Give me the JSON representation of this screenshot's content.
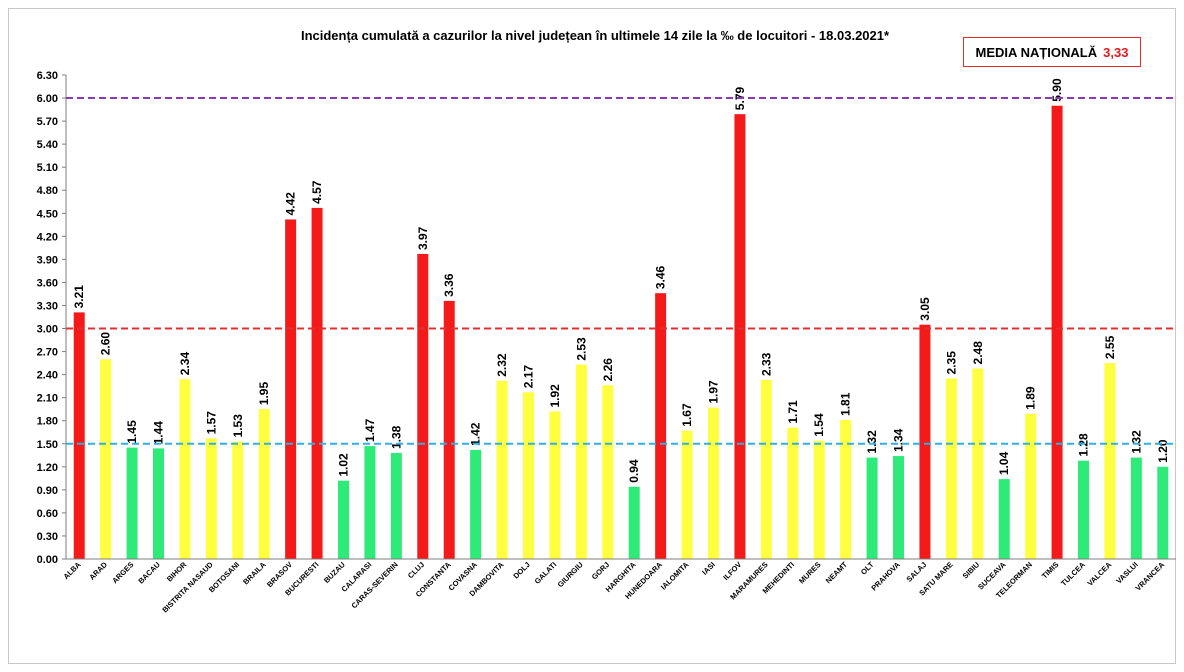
{
  "chart_data": {
    "type": "bar",
    "title": "Incidența cumulată a cazurilor la nivel județean în ultimele 14 zile la ‰ de locuitori - 18.03.2021*",
    "national_average": {
      "label": "MEDIA NAȚIONALĂ",
      "value_text": "3,33"
    },
    "categories": [
      "ALBA",
      "ARAD",
      "ARGES",
      "BACAU",
      "BIHOR",
      "BISTRITA NASAUD",
      "BOTOSANI",
      "BRAILA",
      "BRASOV",
      "BUCURESTI",
      "BUZAU",
      "CALARASI",
      "CARAS-SEVERIN",
      "CLUJ",
      "CONSTANTA",
      "COVASNA",
      "DAMBOVITA",
      "DOLJ",
      "GALATI",
      "GIURGIU",
      "GORJ",
      "HARGHITA",
      "HUNEDOARA",
      "IALOMITA",
      "IASI",
      "ILFOV",
      "MARAMURES",
      "MEHEDINTI",
      "MURES",
      "NEAMT",
      "OLT",
      "PRAHOVA",
      "SALAJ",
      "SATU MARE",
      "SIBIU",
      "SUCEAVA",
      "TELEORMAN",
      "TIMIS",
      "TULCEA",
      "VALCEA",
      "VASLUI",
      "VRANCEA"
    ],
    "values": [
      3.21,
      2.6,
      1.45,
      1.44,
      2.34,
      1.57,
      1.53,
      1.95,
      4.42,
      4.57,
      1.02,
      1.47,
      1.38,
      3.97,
      3.36,
      1.42,
      2.32,
      2.17,
      1.92,
      2.53,
      2.26,
      0.94,
      3.46,
      1.67,
      1.97,
      5.79,
      2.33,
      1.71,
      1.54,
      1.81,
      1.32,
      1.34,
      3.05,
      2.35,
      2.48,
      1.04,
      1.89,
      5.9,
      1.28,
      2.55,
      1.32,
      1.2
    ],
    "value_labels": [
      "3.21",
      "2.60",
      "1.45",
      "1.44",
      "2.34",
      "1.57",
      "1.53",
      "1.95",
      "4.42",
      "4.57",
      "1.02",
      "1.47",
      "1.38",
      "3.97",
      "3.36",
      "1.42",
      "2.32",
      "2.17",
      "1.92",
      "2.53",
      "2.26",
      "0.94",
      "3.46",
      "1.67",
      "1.97",
      "5.79",
      "2.33",
      "1.71",
      "1.54",
      "1.81",
      "1.32",
      "1.34",
      "3.05",
      "2.35",
      "2.48",
      "1.04",
      "1.89",
      "5.90",
      "1.28",
      "2.55",
      "1.32",
      "1.20"
    ],
    "ylim": [
      0,
      6.3
    ],
    "y_ticks": [
      "0.00",
      "0.30",
      "0.60",
      "0.90",
      "1.20",
      "1.50",
      "1.80",
      "2.10",
      "2.40",
      "2.70",
      "3.00",
      "3.30",
      "3.60",
      "3.90",
      "4.20",
      "4.50",
      "4.80",
      "5.10",
      "5.40",
      "5.70",
      "6.00",
      "6.30"
    ],
    "reference_lines": [
      {
        "value": 1.5,
        "color": "#2bb0e8",
        "style": "dashed"
      },
      {
        "value": 3.0,
        "color": "#e03030",
        "style": "dashed"
      },
      {
        "value": 6.0,
        "color": "#8a3ab9",
        "style": "dashed"
      }
    ],
    "colors": {
      "green": "#2eea78",
      "yellow": "#ffff40",
      "red": "#f51a1a",
      "axis": "#7f7f7f"
    },
    "grid": false,
    "legend": "none"
  }
}
